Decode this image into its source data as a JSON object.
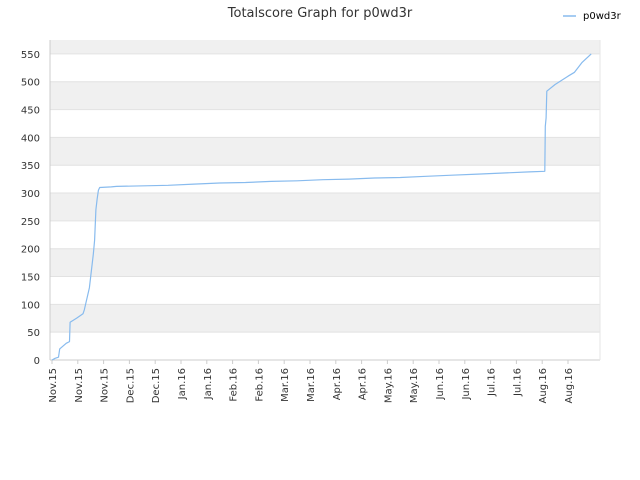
{
  "chart_data": {
    "type": "line",
    "title": "Totalscore Graph for p0wd3r",
    "xlabel": "",
    "ylabel": "",
    "ylim": [
      0,
      575
    ],
    "y_ticks": [
      0,
      50,
      100,
      150,
      200,
      250,
      300,
      350,
      400,
      450,
      500,
      550
    ],
    "x_tick_labels": [
      "Nov.15",
      "Nov.15",
      "Nov.15",
      "Dec.15",
      "Dec.15",
      "Jan.16",
      "Jan.16",
      "Feb.16",
      "Feb.16",
      "Mar.16",
      "Mar.16",
      "Apr.16",
      "Apr.16",
      "May.16",
      "May.16",
      "Jun.16",
      "Jun.16",
      "Jul.16",
      "Jul.16",
      "Aug.16",
      "Aug.16"
    ],
    "grid": "horizontal bands",
    "legend_position": "top-right",
    "line_color": "#88bbee",
    "series": [
      {
        "name": "p0wd3r",
        "points": [
          [
            0,
            0
          ],
          [
            0.12,
            3
          ],
          [
            0.25,
            5
          ],
          [
            0.3,
            20
          ],
          [
            0.55,
            30
          ],
          [
            0.68,
            33
          ],
          [
            0.7,
            68
          ],
          [
            0.95,
            75
          ],
          [
            1.2,
            83
          ],
          [
            1.25,
            90
          ],
          [
            1.45,
            130
          ],
          [
            1.5,
            150
          ],
          [
            1.55,
            170
          ],
          [
            1.6,
            190
          ],
          [
            1.65,
            215
          ],
          [
            1.7,
            270
          ],
          [
            1.75,
            290
          ],
          [
            1.8,
            305
          ],
          [
            1.85,
            310
          ],
          [
            2.3,
            311
          ],
          [
            2.5,
            312
          ],
          [
            4.5,
            314
          ],
          [
            5.5,
            316
          ],
          [
            6.5,
            318
          ],
          [
            7.5,
            319
          ],
          [
            8.5,
            321
          ],
          [
            9.5,
            322
          ],
          [
            10.5,
            324
          ],
          [
            11.5,
            325
          ],
          [
            12.5,
            327
          ],
          [
            13.5,
            328
          ],
          [
            14.5,
            330
          ],
          [
            15.5,
            332
          ],
          [
            16.5,
            334
          ],
          [
            17.5,
            336
          ],
          [
            18.5,
            338
          ],
          [
            19.1,
            339
          ],
          [
            19.12,
            420
          ],
          [
            19.15,
            435
          ],
          [
            19.18,
            483
          ],
          [
            19.5,
            495
          ],
          [
            20.0,
            510
          ],
          [
            20.25,
            517
          ],
          [
            20.55,
            535
          ],
          [
            20.9,
            550
          ]
        ]
      }
    ]
  }
}
